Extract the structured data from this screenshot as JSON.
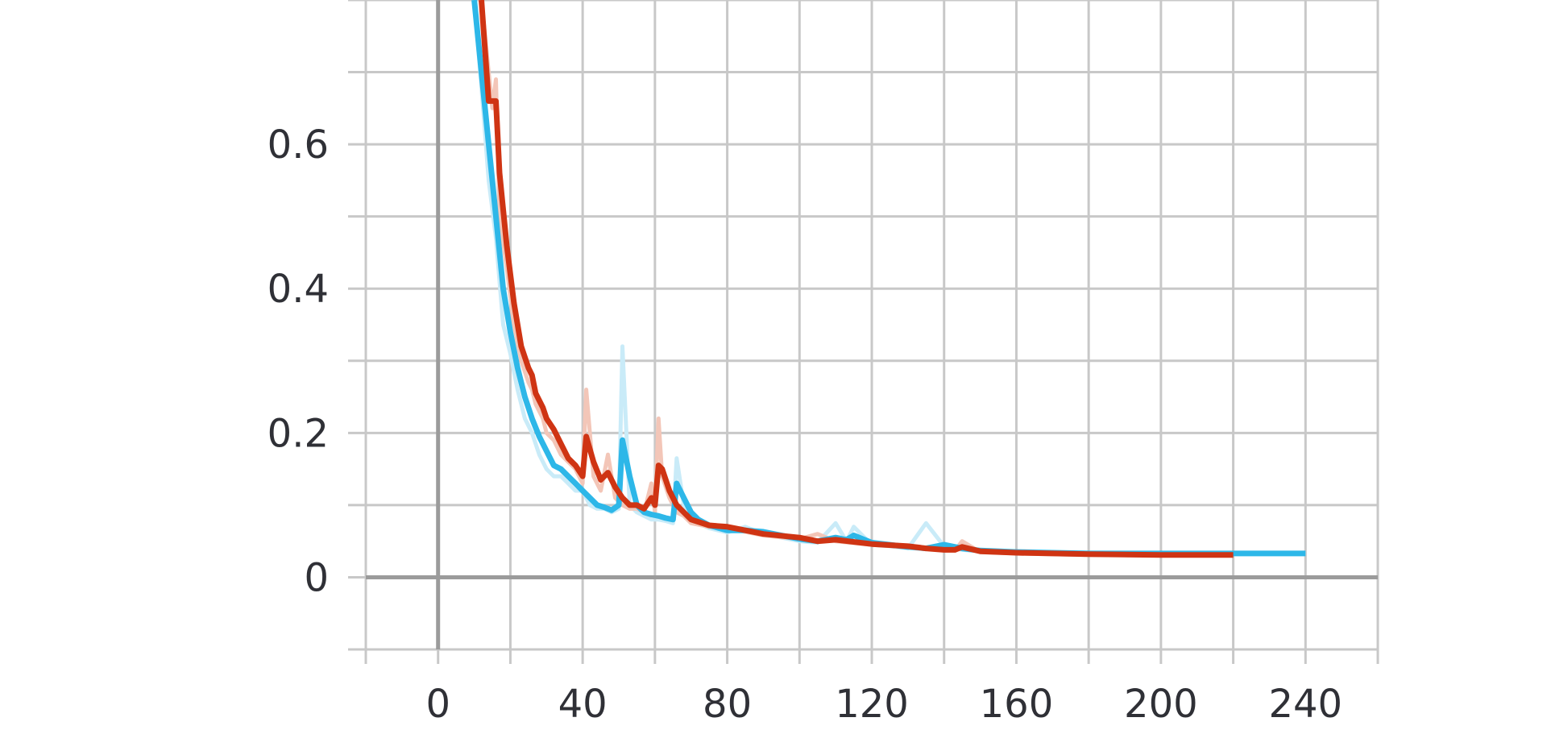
{
  "chart_data": {
    "type": "line",
    "title": "",
    "xlabel": "",
    "ylabel": "",
    "xlim": [
      -20,
      260
    ],
    "ylim": [
      -0.1,
      0.8
    ],
    "x_ticks": [
      0,
      40,
      80,
      120,
      160,
      200,
      240
    ],
    "x_tick_labels": [
      "0",
      "40",
      "80",
      "120",
      "160",
      "200",
      "240"
    ],
    "y_ticks": [
      0,
      0.2,
      0.4,
      0.6
    ],
    "y_tick_labels": [
      "0",
      "0.2",
      "0.4",
      "0.6"
    ],
    "x_minor_grid_step": 20,
    "y_minor_grid_step": 0.1,
    "grid": true,
    "legend": "none",
    "series": [
      {
        "color": "#2db7e8",
        "raw_color": "#c9ebf8",
        "x": [
          10,
          12,
          14,
          16,
          18,
          20,
          22,
          24,
          26,
          28,
          30,
          32,
          34,
          36,
          38,
          40,
          42,
          44,
          46,
          48,
          50,
          51,
          53,
          55,
          57,
          59,
          61,
          63,
          65,
          66,
          68,
          70,
          72,
          75,
          80,
          85,
          90,
          95,
          100,
          105,
          110,
          113,
          115,
          120,
          125,
          130,
          135,
          140,
          145,
          150,
          160,
          170,
          180,
          190,
          200,
          210,
          220,
          230,
          240
        ],
        "values": [
          0.8,
          0.7,
          0.6,
          0.5,
          0.4,
          0.34,
          0.29,
          0.25,
          0.22,
          0.195,
          0.175,
          0.155,
          0.15,
          0.14,
          0.13,
          0.12,
          0.11,
          0.1,
          0.097,
          0.093,
          0.1,
          0.19,
          0.14,
          0.1,
          0.09,
          0.087,
          0.085,
          0.082,
          0.08,
          0.13,
          0.11,
          0.09,
          0.08,
          0.072,
          0.065,
          0.065,
          0.063,
          0.058,
          0.053,
          0.05,
          0.055,
          0.052,
          0.058,
          0.048,
          0.045,
          0.042,
          0.04,
          0.045,
          0.04,
          0.037,
          0.035,
          0.034,
          0.033,
          0.033,
          0.033,
          0.033,
          0.033,
          0.033,
          0.033
        ],
        "raw_values": [
          0.8,
          0.68,
          0.55,
          0.47,
          0.35,
          0.31,
          0.26,
          0.22,
          0.2,
          0.17,
          0.15,
          0.14,
          0.14,
          0.13,
          0.12,
          0.12,
          0.1,
          0.095,
          0.095,
          0.09,
          0.095,
          0.32,
          0.1,
          0.09,
          0.085,
          0.08,
          0.08,
          0.078,
          0.075,
          0.165,
          0.1,
          0.085,
          0.075,
          0.068,
          0.062,
          0.07,
          0.06,
          0.055,
          0.05,
          0.048,
          0.075,
          0.05,
          0.07,
          0.045,
          0.043,
          0.04,
          0.075,
          0.043,
          0.038,
          0.036,
          0.035,
          0.034,
          0.033,
          0.033,
          0.033,
          0.033,
          0.033,
          0.033,
          0.033
        ]
      },
      {
        "color": "#cf3413",
        "raw_color": "#f3c6b8",
        "x": [
          12,
          14,
          15,
          16,
          17,
          19,
          21,
          23,
          25,
          26,
          27,
          29,
          30,
          32,
          34,
          36,
          38,
          40,
          41,
          43,
          45,
          47,
          49,
          51,
          53,
          55,
          57,
          59,
          60,
          61,
          62,
          64,
          66,
          68,
          70,
          75,
          80,
          85,
          90,
          100,
          105,
          110,
          120,
          130,
          135,
          140,
          143,
          145,
          150,
          160,
          180,
          200,
          220
        ],
        "values": [
          0.8,
          0.66,
          0.66,
          0.66,
          0.56,
          0.46,
          0.38,
          0.32,
          0.29,
          0.28,
          0.255,
          0.235,
          0.22,
          0.205,
          0.185,
          0.165,
          0.155,
          0.14,
          0.195,
          0.16,
          0.135,
          0.145,
          0.125,
          0.11,
          0.1,
          0.1,
          0.095,
          0.11,
          0.1,
          0.155,
          0.15,
          0.12,
          0.1,
          0.09,
          0.08,
          0.072,
          0.07,
          0.065,
          0.06,
          0.055,
          0.05,
          0.052,
          0.046,
          0.043,
          0.04,
          0.038,
          0.038,
          0.042,
          0.036,
          0.034,
          0.032,
          0.031,
          0.031
        ],
        "raw_values": [
          0.8,
          0.7,
          0.65,
          0.69,
          0.5,
          0.43,
          0.35,
          0.3,
          0.27,
          0.26,
          0.24,
          0.22,
          0.2,
          0.19,
          0.17,
          0.16,
          0.15,
          0.13,
          0.26,
          0.14,
          0.12,
          0.17,
          0.11,
          0.1,
          0.095,
          0.095,
          0.09,
          0.13,
          0.09,
          0.22,
          0.14,
          0.11,
          0.09,
          0.085,
          0.075,
          0.07,
          0.068,
          0.063,
          0.058,
          0.053,
          0.06,
          0.05,
          0.045,
          0.042,
          0.04,
          0.037,
          0.037,
          0.05,
          0.035,
          0.033,
          0.031,
          0.031,
          0.031
        ]
      }
    ]
  },
  "style": {
    "grid_color": "#c8c8c8",
    "axis_color": "#9b9b9b",
    "text_color": "#2f3036",
    "background": "#ffffff"
  }
}
